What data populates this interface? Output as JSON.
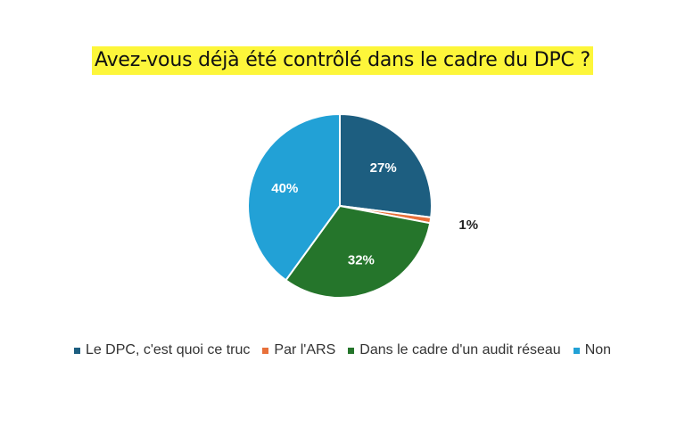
{
  "chart_data": {
    "type": "pie",
    "title": "Avez-vous déjà été contrôlé dans le cadre du DPC ?",
    "slices": [
      {
        "name": "Le DPC, c'est quoi ce truc",
        "value": 27,
        "label": "27%",
        "color": "#1d5e80"
      },
      {
        "name": "Par l'ARS",
        "value": 1,
        "label": "1%",
        "color": "#e8703a"
      },
      {
        "name": "Dans le cadre d'un audit réseau",
        "value": 32,
        "label": "32%",
        "color": "#25752b"
      },
      {
        "name": "Non",
        "value": 40,
        "label": "40%",
        "color": "#22a1d6"
      }
    ],
    "legend_position": "bottom"
  }
}
